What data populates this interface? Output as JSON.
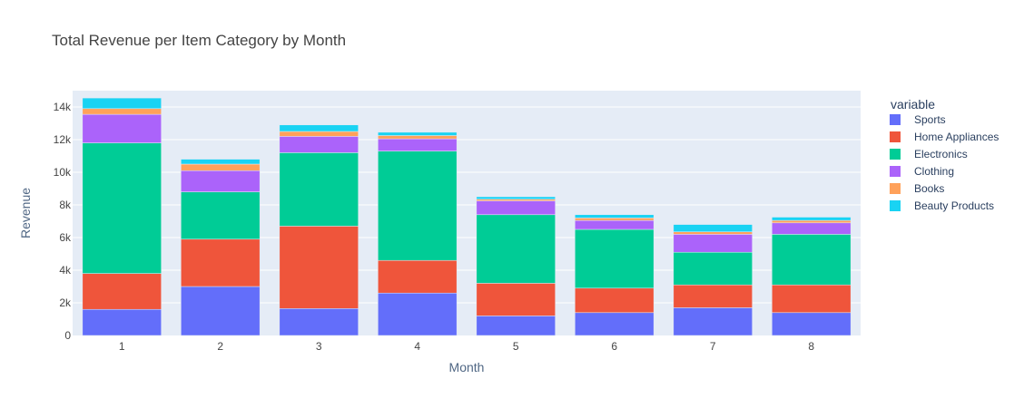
{
  "chart_data": {
    "type": "bar",
    "barmode": "stack",
    "title": "Total Revenue per Item Category by Month",
    "xlabel": "Month",
    "ylabel": "Revenue",
    "ylim": [
      0,
      15000
    ],
    "y_ticks": [
      0,
      2000,
      4000,
      6000,
      8000,
      10000,
      12000,
      14000
    ],
    "y_tick_labels": [
      "0",
      "2k",
      "4k",
      "6k",
      "8k",
      "10k",
      "12k",
      "14k"
    ],
    "categories": [
      "1",
      "2",
      "3",
      "4",
      "5",
      "6",
      "7",
      "8"
    ],
    "grid": true,
    "legend_title": "variable",
    "legend_position": "right",
    "series": [
      {
        "name": "Sports",
        "color": "#636efa",
        "values": [
          1600,
          3000,
          1650,
          2600,
          1200,
          1400,
          1700,
          1400
        ]
      },
      {
        "name": "Home Appliances",
        "color": "#ef553b",
        "values": [
          2200,
          2900,
          5050,
          2000,
          2000,
          1500,
          1400,
          1700
        ]
      },
      {
        "name": "Electronics",
        "color": "#00cc96",
        "values": [
          8000,
          2900,
          4500,
          6700,
          4200,
          3600,
          2000,
          3100
        ]
      },
      {
        "name": "Clothing",
        "color": "#ab63fa",
        "values": [
          1750,
          1300,
          1000,
          750,
          850,
          550,
          1100,
          700
        ]
      },
      {
        "name": "Books",
        "color": "#ffa15a",
        "values": [
          350,
          400,
          300,
          200,
          100,
          150,
          150,
          150
        ]
      },
      {
        "name": "Beauty Products",
        "color": "#19d3f3",
        "values": [
          650,
          300,
          400,
          200,
          150,
          200,
          450,
          200
        ]
      }
    ]
  }
}
